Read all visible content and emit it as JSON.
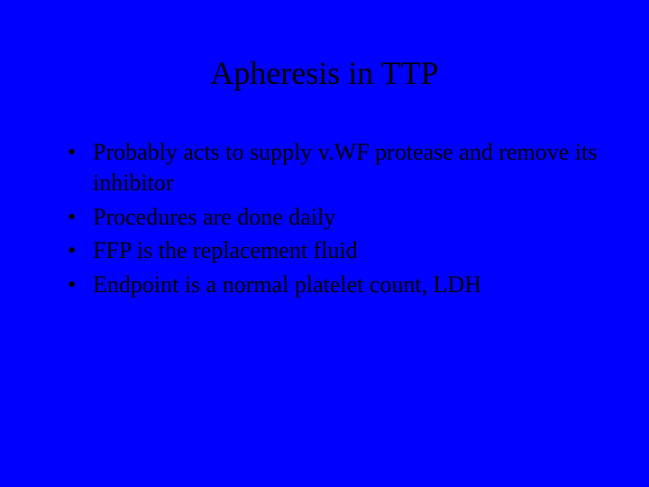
{
  "slide": {
    "background_color": "#0000ff",
    "text_color": "#000000",
    "font_family": "Times New Roman",
    "title": {
      "text": "Apheresis in TTP",
      "fontsize": 36,
      "align": "center"
    },
    "bullets": [
      {
        "text": "Probably acts to supply v.WF protease and remove its inhibitor"
      },
      {
        "text": "Procedures are done daily"
      },
      {
        "text": "FFP is the replacement fluid"
      },
      {
        "text": "Endpoint is a normal platelet count, LDH"
      }
    ],
    "bullet_fontsize": 26
  }
}
